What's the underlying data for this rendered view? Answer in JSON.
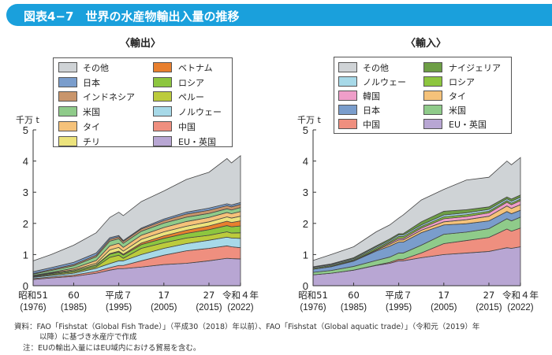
{
  "title": "図表4−7　世界の水産物輸出入量の推移",
  "colors": {
    "その他": "#cfd3d6",
    "インドネシア": "#c9956b",
    "タイ": "#f5c27a",
    "ベトナム": "#e87f2e",
    "ペルー": "#bccb3c",
    "中国": "#ef8f7f",
    "日本": "#7a9dcc",
    "米国": "#8fcb8a",
    "チリ": "#ece37c",
    "ロシア": "#8dc63f",
    "ノルウェー": "#a7d9e8",
    "EU・英国": "#b8a6d3",
    "韓国": "#ef9ec9",
    "ナイジェリア": "#6d9e45"
  },
  "notes": {
    "source_line1": "資料：FAO「Fishstat（Global Fish Trade）」（平成30（2018）年以前）、FAO「Fishstat（Global aquatic trade）」（令和元（2019）年",
    "source_line2": "以降）に基づき水産庁で作成",
    "note": "注：EUの輸出入量にはEU域内における貿易を含む。"
  },
  "chart_data": [
    {
      "type": "area",
      "stacked": true,
      "title": "〈輸出〉",
      "ylabel": "千万 t",
      "ylim": [
        0,
        5
      ],
      "yticks": [
        "0",
        "1",
        "2",
        "3",
        "4",
        "5"
      ],
      "xticks": [
        {
          "year": 1976,
          "era": "昭和51",
          "label": "(1976)"
        },
        {
          "year": 1985,
          "era": "60",
          "label": "(1985)"
        },
        {
          "year": 1995,
          "era": "平成７",
          "label": "(1995)"
        },
        {
          "year": 2005,
          "era": "17",
          "label": "(2005)"
        },
        {
          "year": 2015,
          "era": "27",
          "label": "(2015)"
        },
        {
          "year": 2022,
          "era": "令和４年",
          "label": "(2022)"
        }
      ],
      "x": [
        1976,
        1980,
        1985,
        1990,
        1993,
        1995,
        1996,
        2000,
        2005,
        2010,
        2015,
        2019,
        2020,
        2022
      ],
      "legend": [
        "その他",
        "日本",
        "インドネシア",
        "米国",
        "タイ",
        "チリ",
        "ベトナム",
        "ロシア",
        "ペルー",
        "ノルウェー",
        "中国",
        "EU・英国"
      ],
      "series": [
        {
          "name": "EU・英国",
          "values": [
            0.2,
            0.25,
            0.3,
            0.4,
            0.5,
            0.55,
            0.55,
            0.6,
            0.68,
            0.72,
            0.8,
            0.88,
            0.87,
            0.86
          ]
        },
        {
          "name": "中国",
          "values": [
            0.03,
            0.03,
            0.04,
            0.06,
            0.08,
            0.1,
            0.1,
            0.2,
            0.3,
            0.4,
            0.4,
            0.4,
            0.38,
            0.36
          ]
        },
        {
          "name": "ノルウェー",
          "values": [
            0.04,
            0.05,
            0.06,
            0.1,
            0.13,
            0.15,
            0.15,
            0.2,
            0.22,
            0.23,
            0.26,
            0.28,
            0.28,
            0.3
          ]
        },
        {
          "name": "ペルー",
          "values": [
            0.02,
            0.03,
            0.04,
            0.05,
            0.2,
            0.18,
            0.08,
            0.2,
            0.18,
            0.18,
            0.16,
            0.17,
            0.16,
            0.18
          ]
        },
        {
          "name": "ロシア",
          "values": [
            0.02,
            0.03,
            0.04,
            0.05,
            0.1,
            0.1,
            0.1,
            0.12,
            0.14,
            0.15,
            0.18,
            0.2,
            0.2,
            0.22
          ]
        },
        {
          "name": "ベトナム",
          "values": [
            0,
            0,
            0,
            0.01,
            0.02,
            0.03,
            0.03,
            0.05,
            0.08,
            0.1,
            0.12,
            0.14,
            0.14,
            0.16
          ]
        },
        {
          "name": "チリ",
          "values": [
            0.01,
            0.02,
            0.03,
            0.05,
            0.12,
            0.12,
            0.1,
            0.12,
            0.13,
            0.13,
            0.13,
            0.14,
            0.14,
            0.15
          ]
        },
        {
          "name": "タイ",
          "values": [
            0.01,
            0.02,
            0.05,
            0.09,
            0.13,
            0.13,
            0.12,
            0.13,
            0.14,
            0.15,
            0.14,
            0.14,
            0.14,
            0.15
          ]
        },
        {
          "name": "米国",
          "values": [
            0.04,
            0.06,
            0.08,
            0.12,
            0.15,
            0.15,
            0.13,
            0.13,
            0.14,
            0.14,
            0.13,
            0.12,
            0.12,
            0.13
          ]
        },
        {
          "name": "インドネシア",
          "values": [
            0.02,
            0.03,
            0.04,
            0.05,
            0.06,
            0.06,
            0.06,
            0.07,
            0.08,
            0.1,
            0.1,
            0.1,
            0.1,
            0.1
          ]
        },
        {
          "name": "日本",
          "values": [
            0.06,
            0.06,
            0.07,
            0.07,
            0.05,
            0.04,
            0.03,
            0.03,
            0.05,
            0.06,
            0.07,
            0.06,
            0.06,
            0.06
          ]
        },
        {
          "name": "その他",
          "values": [
            0.35,
            0.42,
            0.55,
            0.65,
            0.65,
            0.75,
            0.8,
            0.85,
            0.9,
            1.05,
            1.15,
            1.45,
            1.35,
            1.5
          ]
        }
      ]
    },
    {
      "type": "area",
      "stacked": true,
      "title": "〈輸入〉",
      "ylabel": "千万 t",
      "ylim": [
        0,
        5
      ],
      "yticks": [
        "0",
        "1",
        "2",
        "3",
        "4",
        "5"
      ],
      "xticks": [
        {
          "year": 1976,
          "era": "昭和51",
          "label": "(1976)"
        },
        {
          "year": 1985,
          "era": "60",
          "label": "(1985)"
        },
        {
          "year": 1995,
          "era": "平成７",
          "label": "(1995)"
        },
        {
          "year": 2005,
          "era": "17",
          "label": "(2005)"
        },
        {
          "year": 2015,
          "era": "27",
          "label": "(2015)"
        },
        {
          "year": 2022,
          "era": "令和４年",
          "label": "(2022)"
        }
      ],
      "x": [
        1976,
        1980,
        1985,
        1990,
        1993,
        1995,
        1996,
        2000,
        2005,
        2010,
        2015,
        2019,
        2020,
        2022
      ],
      "legend": [
        "その他",
        "ノルウェー",
        "韓国",
        "日本",
        "中国",
        "ナイジェリア",
        "ロシア",
        "タイ",
        "米国",
        "EU・英国"
      ],
      "series": [
        {
          "name": "EU・英国",
          "values": [
            0.35,
            0.4,
            0.5,
            0.65,
            0.72,
            0.8,
            0.8,
            0.9,
            1.0,
            1.05,
            1.1,
            1.22,
            1.2,
            1.25
          ]
        },
        {
          "name": "中国",
          "values": [
            0,
            0,
            0,
            0.01,
            0.03,
            0.05,
            0.05,
            0.15,
            0.35,
            0.4,
            0.45,
            0.6,
            0.55,
            0.6
          ]
        },
        {
          "name": "米国",
          "values": [
            0.08,
            0.09,
            0.12,
            0.15,
            0.17,
            0.2,
            0.2,
            0.25,
            0.3,
            0.27,
            0.28,
            0.33,
            0.33,
            0.35
          ]
        },
        {
          "name": "日本",
          "values": [
            0.1,
            0.12,
            0.17,
            0.3,
            0.35,
            0.35,
            0.35,
            0.4,
            0.3,
            0.27,
            0.25,
            0.23,
            0.23,
            0.22
          ]
        },
        {
          "name": "タイ",
          "values": [
            0,
            0,
            0.01,
            0.03,
            0.06,
            0.07,
            0.07,
            0.08,
            0.1,
            0.13,
            0.15,
            0.18,
            0.17,
            0.18
          ]
        },
        {
          "name": "韓国",
          "values": [
            0,
            0.01,
            0.01,
            0.02,
            0.04,
            0.05,
            0.05,
            0.07,
            0.1,
            0.1,
            0.11,
            0.12,
            0.12,
            0.13
          ]
        },
        {
          "name": "ロシア",
          "values": [
            0.03,
            0.03,
            0.03,
            0.05,
            0.04,
            0.06,
            0.06,
            0.05,
            0.06,
            0.06,
            0.05,
            0.05,
            0.05,
            0.05
          ]
        },
        {
          "name": "ノルウェー",
          "values": [
            0.03,
            0.03,
            0.03,
            0.04,
            0.04,
            0.05,
            0.05,
            0.05,
            0.06,
            0.06,
            0.06,
            0.06,
            0.06,
            0.06
          ]
        },
        {
          "name": "ナイジェリア",
          "values": [
            0.02,
            0.02,
            0.03,
            0.03,
            0.05,
            0.04,
            0.04,
            0.1,
            0.12,
            0.1,
            0.08,
            0.06,
            0.07,
            0.07
          ]
        },
        {
          "name": "その他",
          "values": [
            0.2,
            0.3,
            0.35,
            0.45,
            0.45,
            0.5,
            0.6,
            0.7,
            0.7,
            0.95,
            0.95,
            1.15,
            1.1,
            1.2
          ]
        }
      ]
    }
  ]
}
